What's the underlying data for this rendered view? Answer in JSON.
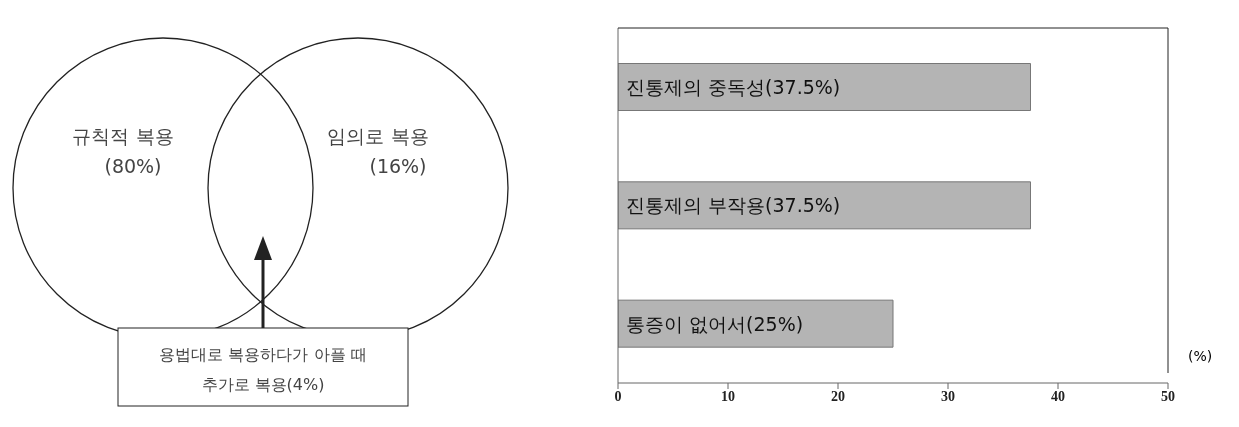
{
  "chart_data": [
    {
      "type": "other",
      "categories": [
        "규칙적 복용",
        "임의로 복용",
        "용법대로 복용하다가 아플 때 추가로 복용"
      ],
      "values": [
        80,
        16,
        4
      ],
      "value_labels": [
        "(80%)",
        "(16%)",
        "(4%)"
      ]
    },
    {
      "type": "bar",
      "orientation": "horizontal",
      "categories": [
        null,
        null,
        null
      ],
      "values": [
        37.5,
        37.5,
        25
      ],
      "color": "#b4b4b4",
      "value_labels": [
        "진통제의 중독성(37.5%)",
        "진통제의 부작용(37.5%)",
        "통증이 없어서(25%)"
      ],
      "xlim": [
        0,
        50
      ],
      "xticks": [
        0,
        10,
        20,
        30,
        40,
        50
      ],
      "xlabel": "(%)",
      "tick_labels": "x"
    }
  ]
}
